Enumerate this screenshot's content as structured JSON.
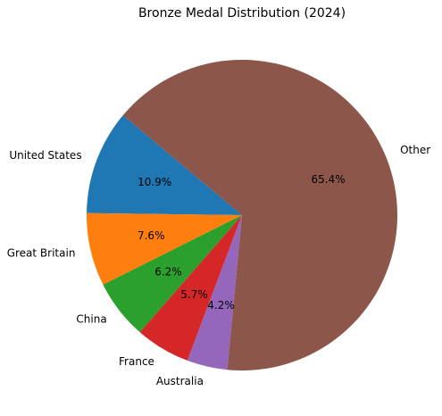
{
  "chart_data": {
    "type": "pie",
    "title": "Bronze Medal Distribution (2024)",
    "categories": [
      "United States",
      "Great Britain",
      "China",
      "France",
      "Australia",
      "Other"
    ],
    "values": [
      10.9,
      7.6,
      6.2,
      5.7,
      4.2,
      65.4
    ],
    "percent_labels": [
      "10.9%",
      "7.6%",
      "6.2%",
      "5.7%",
      "4.2%",
      "65.4%"
    ],
    "colors": [
      "#1f77b4",
      "#ff7f0e",
      "#2ca02c",
      "#d62728",
      "#9467bd",
      "#8c564b"
    ],
    "start_angle_deg": 140,
    "direction": "counterclockwise",
    "legend": "none"
  }
}
